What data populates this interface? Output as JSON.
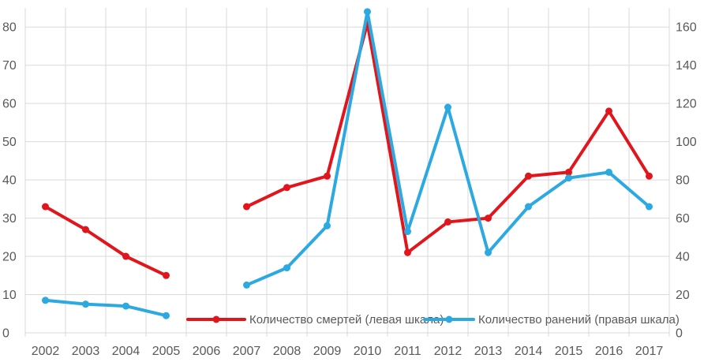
{
  "chart_data": {
    "type": "line",
    "title": "",
    "xlabel": "",
    "ylabel": "",
    "categories": [
      "2002",
      "2003",
      "2004",
      "2005",
      "2006",
      "2007",
      "2008",
      "2009",
      "2010",
      "2011",
      "2012",
      "2013",
      "2014",
      "2015",
      "2016",
      "2017"
    ],
    "series": [
      {
        "name": "Количество смертей (левая шкала)",
        "axis": "left",
        "color": "#e1161d",
        "values": [
          33,
          27,
          20,
          15,
          null,
          33,
          38,
          41,
          81,
          21,
          29,
          30,
          41,
          42,
          58,
          41
        ]
      },
      {
        "name": "Количество ранений (правая шкала)",
        "axis": "right",
        "color": "#2ba9e0",
        "values": [
          17,
          15,
          14,
          9,
          null,
          25,
          34,
          56,
          168,
          53,
          118,
          42,
          66,
          81,
          84,
          66
        ]
      }
    ],
    "left_axis": {
      "ticks": [
        0,
        10,
        20,
        30,
        40,
        50,
        60,
        70,
        80
      ],
      "ylim": [
        0,
        85
      ]
    },
    "right_axis": {
      "ticks": [
        0,
        20,
        40,
        60,
        80,
        100,
        120,
        140,
        160
      ],
      "ylim": [
        0,
        170
      ]
    },
    "grid": true,
    "legend_position": "bottom-inside",
    "colors": {
      "gridline": "#d9d9d9",
      "axis_text": "#595959",
      "background": "#ffffff"
    }
  }
}
